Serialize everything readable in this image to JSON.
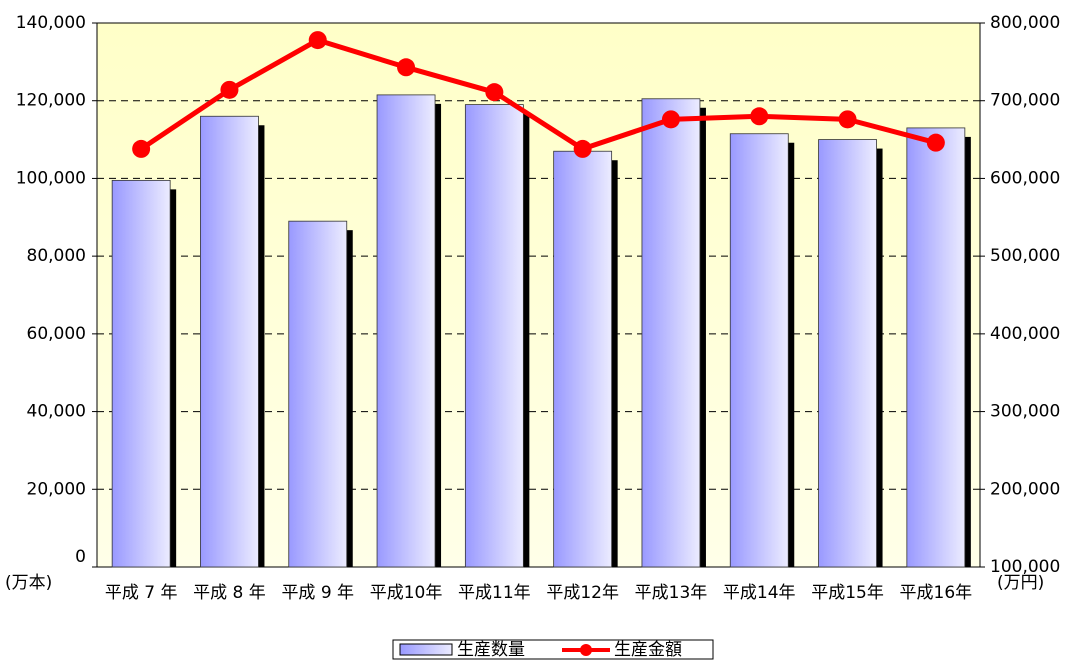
{
  "chart_data": {
    "type": "bar",
    "categories": [
      "平成 7 年",
      "平成 8 年",
      "平成 9 年",
      "平成10年",
      "平成11年",
      "平成12年",
      "平成13年",
      "平成14年",
      "平成15年",
      "平成16年"
    ],
    "series": [
      {
        "name": "生産数量",
        "color": "#9999ff",
        "axis": "y",
        "values": [
          99500,
          116000,
          89000,
          121500,
          119000,
          107000,
          120500,
          111500,
          110000,
          113000
        ]
      },
      {
        "name": "生産金額",
        "color": "#ff0000",
        "axis": "y2",
        "type": "line",
        "values": [
          638000,
          714000,
          778000,
          743000,
          711000,
          638000,
          676000,
          680000,
          676000,
          646000
        ]
      }
    ],
    "ylim": [
      0,
      140000
    ],
    "yticks": [
      0,
      {
        "value": 20000,
        "label": "20,000"
      },
      {
        "value": 40000,
        "label": "40,000"
      },
      {
        "value": 60000,
        "label": "60,000"
      },
      {
        "value": 80000,
        "label": "80,000"
      },
      {
        "value": 100000,
        "label": "100,000"
      },
      {
        "value": 120000,
        "label": "120,000"
      },
      {
        "value": 140000,
        "label": "140,000"
      }
    ],
    "y2lim": [
      100000,
      800000
    ],
    "y2ticks": [
      {
        "value": 100000,
        "label": "100,000"
      },
      {
        "value": 200000,
        "label": "200,000"
      },
      {
        "value": 300000,
        "label": "300,000"
      },
      {
        "value": 400000,
        "label": "400,000"
      },
      {
        "value": 500000,
        "label": "500,000"
      },
      {
        "value": 600000,
        "label": "600,000"
      },
      {
        "value": 700000,
        "label": "700,000"
      },
      {
        "value": 800000,
        "label": "800,000"
      }
    ],
    "ylabel": "(万本)",
    "y2label": "(万円)",
    "grid": true,
    "legend": "bottom"
  }
}
